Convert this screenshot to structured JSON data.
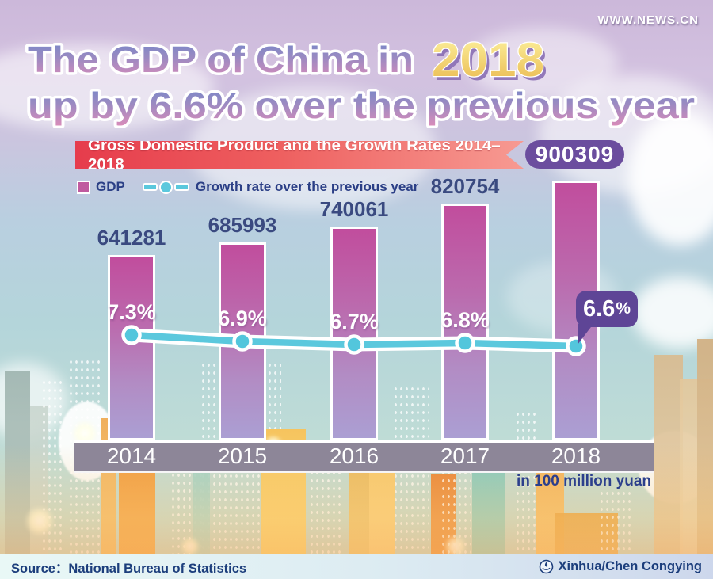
{
  "watermark": "WWW.NEWS.CN",
  "title": {
    "line1": "The GDP of China in",
    "year": "2018",
    "line2": "up by 6.6% over the previous year"
  },
  "banner": {
    "label": "Gross Domestic Product and the Growth Rates 2014–2018",
    "badge": "900309"
  },
  "legend": {
    "gdp_label": "GDP",
    "growth_label": "Growth rate over the previous year"
  },
  "chart_data": {
    "type": "bar",
    "title": "Gross Domestic Product and the Growth Rates 2014-2018",
    "categories": [
      "2014",
      "2015",
      "2016",
      "2017",
      "2018"
    ],
    "series": [
      {
        "name": "GDP",
        "unit": "100 million yuan",
        "values": [
          641281,
          685993,
          740061,
          820754,
          900309
        ]
      },
      {
        "name": "Growth rate over the previous year",
        "unit": "%",
        "values": [
          7.3,
          6.9,
          6.7,
          6.8,
          6.6
        ]
      }
    ],
    "bar_value_labels": [
      "641281",
      "685993",
      "740061",
      "820754"
    ],
    "badge_value_label": "900309",
    "growth_point_labels": [
      "7.3%",
      "6.9%",
      "6.7%",
      "6.8%"
    ],
    "bubble": {
      "value": "6.6",
      "suffix": "%"
    },
    "unit_note": "in 100 million yuan",
    "legend_position": "top-left",
    "ylim": [
      0,
      900309
    ],
    "grid": false,
    "colors": {
      "bar": "#c14d9d",
      "bar_bottom": "#ab9fd3",
      "line": "#5bc8dd",
      "axis_band": "#8d8698",
      "value_text": "#3a4a80",
      "banner": "#e63c4c",
      "badge": "#6b4d9e",
      "bubble": "#5e4596"
    }
  },
  "footer": {
    "source": "Source：National Bureau of Statistics",
    "credit": "Xinhua/Chen Congying"
  }
}
